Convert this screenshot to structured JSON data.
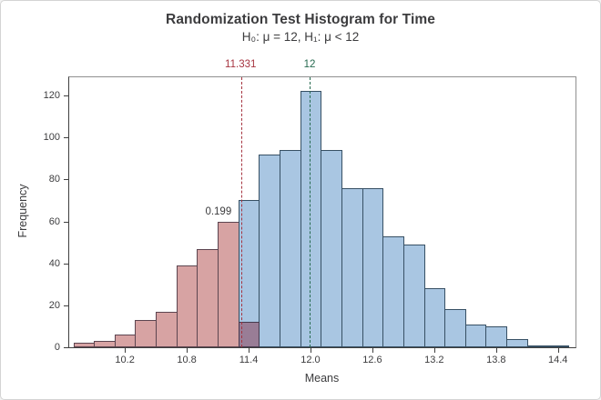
{
  "figure": {
    "background": "#ffffff",
    "border_color": "#d4d4d4"
  },
  "colors": {
    "red_fill": "#d7a3a3",
    "red_border": "#5c4550",
    "blue_fill": "#a9c6e2",
    "blue_border": "#375064",
    "overlap_fill": "#997d96",
    "overlap_border": "#453a4e",
    "ref_red": "#a63440",
    "ref_green": "#266a4f",
    "frame": "#909090",
    "axis": "#3f3f3f",
    "text": "#3c3c3e"
  },
  "chart_data": {
    "type": "bar",
    "subtype": "histogram",
    "title": "Randomization Test Histogram for Time",
    "subtitle": "H₀: μ = 12, H₁: μ < 12",
    "xlabel": "Means",
    "ylabel": "Frequency",
    "grid": false,
    "legend": "none",
    "bin_width": 0.2,
    "bin_centers": [
      9.8,
      10.0,
      10.2,
      10.4,
      10.6,
      10.8,
      11.0,
      11.2,
      11.4,
      11.6,
      11.8,
      12.0,
      12.2,
      12.4,
      12.6,
      12.8,
      13.0,
      13.2,
      13.4,
      13.6,
      13.8,
      14.0,
      14.2,
      14.4
    ],
    "frequencies": [
      2,
      3,
      6,
      13,
      17,
      39,
      47,
      60,
      70,
      92,
      94,
      122,
      94,
      76,
      76,
      53,
      49,
      28,
      18,
      11,
      10,
      4,
      1,
      1
    ],
    "bar_groups": [
      "red",
      "red",
      "red",
      "red",
      "red",
      "red",
      "red",
      "red",
      "blue",
      "blue",
      "blue",
      "blue",
      "blue",
      "blue",
      "blue",
      "blue",
      "blue",
      "blue",
      "blue",
      "blue",
      "blue",
      "blue",
      "blue",
      "blue"
    ],
    "overlap_bar": {
      "bin_center": 11.4,
      "value": 12
    },
    "reference_lines": [
      {
        "label": "11.331",
        "x": 11.331,
        "color_key": "ref_red"
      },
      {
        "label": "12",
        "x": 12,
        "color_key": "ref_green"
      }
    ],
    "p_value_label": "0.199",
    "x_ticks": {
      "values": [
        10.2,
        10.8,
        11.4,
        12.0,
        12.6,
        13.2,
        13.8,
        14.4
      ],
      "labels": [
        "10.2",
        "10.8",
        "11.4",
        "12.0",
        "12.6",
        "13.2",
        "13.8",
        "14.4"
      ]
    },
    "y_ticks": {
      "values": [
        0,
        20,
        40,
        60,
        80,
        100,
        120
      ],
      "labels": [
        "0",
        "20",
        "40",
        "60",
        "80",
        "100",
        "120"
      ]
    },
    "x_range": [
      9.66,
      14.57
    ],
    "y_range": [
      0,
      128.7
    ]
  }
}
